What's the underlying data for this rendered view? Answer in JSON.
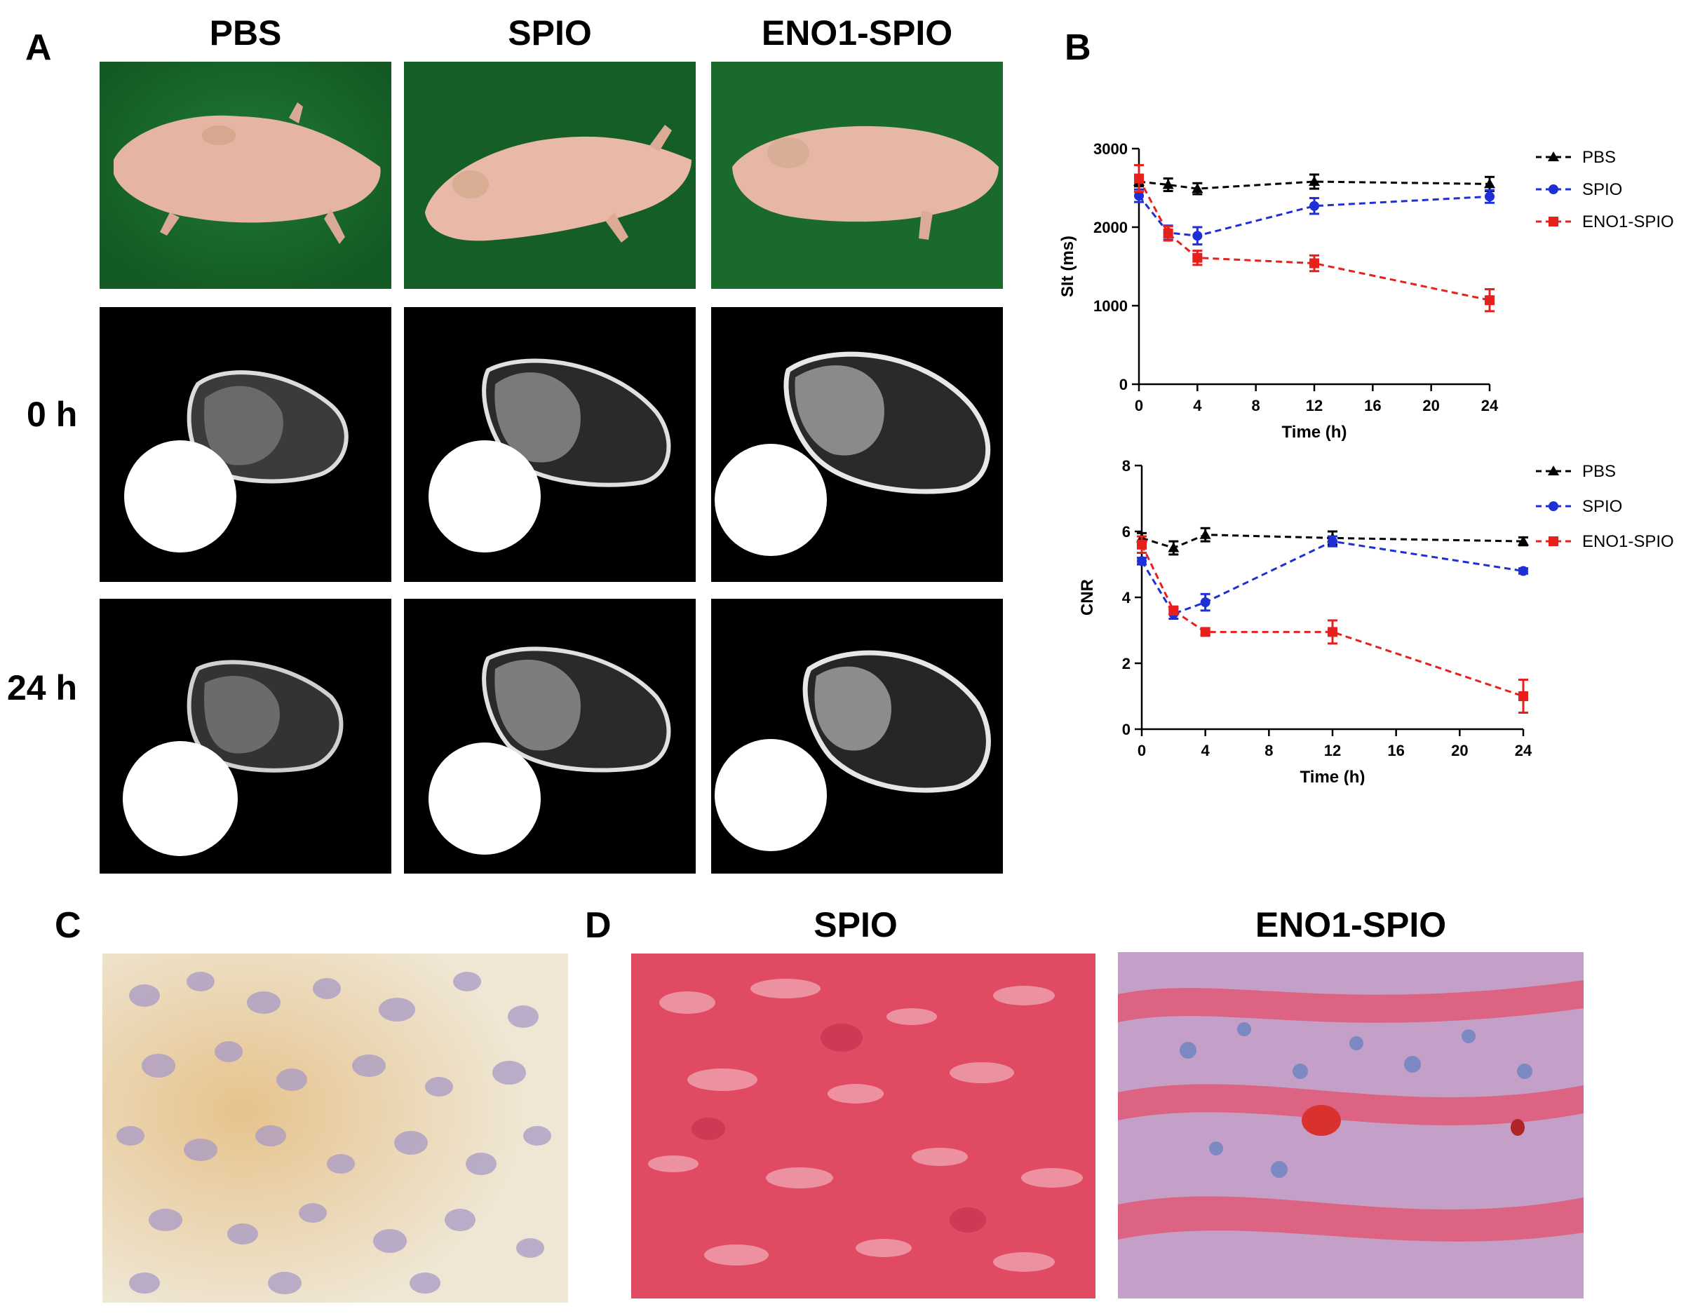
{
  "figure": {
    "panel_labels": {
      "a": "A",
      "b": "B",
      "c": "C",
      "d": "D"
    },
    "panel_a": {
      "columns": [
        "PBS",
        "SPIO",
        "ENO1-SPIO"
      ],
      "rows": [
        "0 h",
        "24 h"
      ]
    },
    "panel_d": {
      "columns": [
        "SPIO",
        "ENO1-SPIO"
      ]
    },
    "colors": {
      "pbs": "#000000",
      "spio": "#1f2fd6",
      "eno1_spio": "#e8201c",
      "photo_bg": "#1b6a2c",
      "skin": "#e9b8a6"
    }
  },
  "chart_data": [
    {
      "type": "line",
      "xlabel": "Time (h)",
      "ylabel": "SIt (ms)",
      "xlim": [
        0,
        24
      ],
      "ylim": [
        0,
        3000
      ],
      "xticks": [
        0,
        4,
        8,
        12,
        16,
        20,
        24
      ],
      "yticks": [
        0,
        1000,
        2000,
        3000
      ],
      "x": [
        0,
        2,
        4,
        12,
        24
      ],
      "legend_position": "right",
      "series": [
        {
          "name": "PBS",
          "color": "#000000",
          "marker": "triangle",
          "values": [
            2580,
            2540,
            2490,
            2580,
            2550
          ],
          "errors": [
            60,
            80,
            70,
            90,
            90
          ]
        },
        {
          "name": "SPIO",
          "color": "#1f2fd6",
          "marker": "circle",
          "values": [
            2400,
            1930,
            1890,
            2270,
            2390
          ],
          "errors": [
            80,
            90,
            110,
            100,
            80
          ]
        },
        {
          "name": "ENO1-SPIO",
          "color": "#e8201c",
          "marker": "square",
          "values": [
            2620,
            1920,
            1610,
            1540,
            1070
          ],
          "errors": [
            170,
            90,
            90,
            100,
            140
          ]
        }
      ]
    },
    {
      "type": "line",
      "xlabel": "Time (h)",
      "ylabel": "CNR",
      "xlim": [
        0,
        24
      ],
      "ylim": [
        0,
        8
      ],
      "xticks": [
        0,
        4,
        8,
        12,
        16,
        20,
        24
      ],
      "yticks": [
        0,
        2,
        4,
        6,
        8
      ],
      "x": [
        0,
        2,
        4,
        12,
        24
      ],
      "legend_position": "right",
      "series": [
        {
          "name": "PBS",
          "color": "#000000",
          "marker": "triangle",
          "values": [
            5.8,
            5.5,
            5.9,
            5.8,
            5.7
          ],
          "errors": [
            0.15,
            0.2,
            0.2,
            0.2,
            0.12
          ]
        },
        {
          "name": "SPIO",
          "color": "#1f2fd6",
          "marker": "circle",
          "values": [
            5.1,
            3.5,
            3.85,
            5.7,
            4.8
          ],
          "errors": [
            0.1,
            0.15,
            0.25,
            0.15,
            0.08
          ]
        },
        {
          "name": "ENO1-SPIO",
          "color": "#e8201c",
          "marker": "square",
          "values": [
            5.6,
            3.6,
            2.95,
            2.95,
            1.0
          ],
          "errors": [
            0.25,
            0.12,
            0.1,
            0.35,
            0.5
          ]
        }
      ]
    }
  ]
}
